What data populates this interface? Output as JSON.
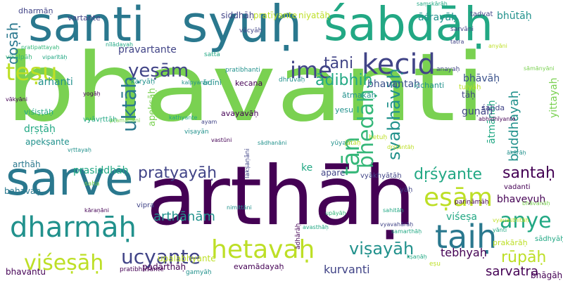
{
  "palette": [
    "#440154",
    "#414487",
    "#2a788e",
    "#22a884",
    "#7ad151",
    "#fde725",
    "#bddf26",
    "#35b779",
    "#3b528b",
    "#21918c"
  ],
  "words": [
    {
      "text": "bhavanti",
      "color": "#7ad151"
    },
    {
      "text": "arthāḥ",
      "color": "#440154"
    },
    {
      "text": "santi",
      "color": "#2a788e"
    },
    {
      "text": "syuḥ",
      "color": "#2a788e"
    },
    {
      "text": "śabdāḥ",
      "color": "#22a884"
    },
    {
      "text": "sarve",
      "color": "#2a788e"
    },
    {
      "text": "hetavaḥ",
      "color": "#bddf26"
    },
    {
      "text": "taiḥ",
      "color": "#2a788e"
    },
    {
      "text": "kecid",
      "color": "#414487"
    },
    {
      "text": "dharmāḥ",
      "color": "#21918c"
    },
    {
      "text": "eṣām",
      "color": "#bddf26"
    },
    {
      "text": "ime",
      "color": "#414487"
    },
    {
      "text": "teṣu",
      "color": "#bddf26"
    },
    {
      "text": "viśeṣāḥ",
      "color": "#bddf26"
    },
    {
      "text": "ucyante",
      "color": "#414487"
    },
    {
      "text": "anye",
      "color": "#22a884"
    },
    {
      "text": "viṣayāḥ",
      "color": "#21918c"
    },
    {
      "text": "yeṣām",
      "color": "#414487"
    },
    {
      "text": "santaḥ",
      "color": "#440154"
    },
    {
      "text": "pratyayāḥ",
      "color": "#414487"
    },
    {
      "text": "rūpāḥ",
      "color": "#bddf26"
    },
    {
      "text": "uktāḥ",
      "color": "#2a788e"
    },
    {
      "text": "bhedāḥ",
      "color": "#35b779"
    },
    {
      "text": "tān",
      "color": "#35b779"
    },
    {
      "text": "tāni",
      "color": "#414487"
    },
    {
      "text": "dṛśyante",
      "color": "#22a884"
    },
    {
      "text": "kurvanti",
      "color": "#414487"
    },
    {
      "text": "sarvatra",
      "color": "#440154"
    },
    {
      "text": "bhāgāḥ",
      "color": "#440154"
    },
    {
      "text": "tebhyaḥ",
      "color": "#440154"
    },
    {
      "text": "doṣāḥ",
      "color": "#2a788e"
    },
    {
      "text": "ādibhiḥ",
      "color": "#22a884"
    },
    {
      "text": "svabhāvāḥ",
      "color": "#21918c"
    },
    {
      "text": "buddhayaḥ",
      "color": "#21918c"
    },
    {
      "text": "arthānām",
      "color": "#21918c"
    },
    {
      "text": "bhāvāḥ",
      "color": "#3b528b"
    },
    {
      "text": "ātmānaḥ",
      "color": "#22a884"
    },
    {
      "text": "yittayaḥ",
      "color": "#7ad151"
    },
    {
      "text": "āśrayāḥ",
      "color": "#21918c"
    },
    {
      "text": "bhūtāḥ",
      "color": "#21918c"
    },
    {
      "text": "arthāḥ",
      "color": "#2a788e"
    },
    {
      "text": "arhanti",
      "color": "#21918c"
    },
    {
      "text": "apekṣante",
      "color": "#21918c"
    },
    {
      "text": "guṇāḥ",
      "color": "#414487"
    },
    {
      "text": "prasiddhāḥ",
      "color": "#22a884"
    },
    {
      "text": "pravartante",
      "color": "#414487"
    },
    {
      "text": "bhaveyuḥ",
      "color": "#440154"
    },
    {
      "text": "viśeṣa",
      "color": "#22a884"
    },
    {
      "text": "bahavaḥ",
      "color": "#2a788e"
    },
    {
      "text": "dṛṣṭāḥ",
      "color": "#22a884"
    },
    {
      "text": "apekṣāḥ",
      "color": "#7ad151"
    },
    {
      "text": "bhavantaḥ",
      "color": "#3b528b"
    },
    {
      "text": "bhavantu",
      "color": "#440154"
    },
    {
      "text": "siddhāḥ",
      "color": "#414487"
    },
    {
      "text": "pratīyante",
      "color": "#bddf26"
    },
    {
      "text": "niyatāḥ",
      "color": "#bddf26"
    },
    {
      "text": "vartante",
      "color": "#414487"
    },
    {
      "text": "dharmāṇ",
      "color": "#414487"
    },
    {
      "text": "upalabhyante",
      "color": "#bddf26"
    },
    {
      "text": "padārthāḥ",
      "color": "#440154"
    },
    {
      "text": "ātmakāḥ",
      "color": "#21918c"
    },
    {
      "text": "kecana",
      "color": "#440154"
    },
    {
      "text": "ādīni",
      "color": "#21918c"
    },
    {
      "text": "avayavāḥ",
      "color": "#440154"
    },
    {
      "text": "viśiṣṭāḥ",
      "color": "#22a884"
    },
    {
      "text": "vyāvṛttāḥ",
      "color": "#22a884"
    },
    {
      "text": "yāḥ",
      "color": "#414487"
    },
    {
      "text": "vadanti",
      "color": "#440154"
    },
    {
      "text": "tāḥ",
      "color": "#414487"
    },
    {
      "text": "icchanti",
      "color": "#21918c"
    },
    {
      "text": "tulyāḥ",
      "color": "#bddf26"
    },
    {
      "text": "yesu",
      "color": "#21918c"
    },
    {
      "text": "ke",
      "color": "#22a884"
    },
    {
      "text": "apare",
      "color": "#414487"
    },
    {
      "text": "vyākhyātāḥ",
      "color": "#414487"
    },
    {
      "text": "pariṇāmāḥ",
      "color": "#440154"
    },
    {
      "text": "prakārāḥ",
      "color": "#bddf26"
    },
    {
      "text": "sādhyāḥ",
      "color": "#22a884"
    },
    {
      "text": "anayaḥ",
      "color": "#414487"
    },
    {
      "text": "evamādayaḥ",
      "color": "#440154"
    },
    {
      "text": "gamyāḥ",
      "color": "#21918c"
    },
    {
      "text": "pratibhāsante",
      "color": "#440154"
    },
    {
      "text": "vipra",
      "color": "#414487"
    },
    {
      "text": "pratibhanti",
      "color": "#21918c"
    },
    {
      "text": "yūyam",
      "color": "#21918c"
    },
    {
      "text": "ādhārāḥ",
      "color": "#440154"
    },
    {
      "text": "vikalpāḥ",
      "color": "#35b779"
    },
    {
      "text": "dhruvāḥ",
      "color": "#21918c"
    },
    {
      "text": "saha",
      "color": "#7ad151"
    },
    {
      "text": "śabda",
      "color": "#414487"
    },
    {
      "text": "hetuḥ",
      "color": "#bddf26"
    },
    {
      "text": "jātāḥ",
      "color": "#bddf26"
    },
    {
      "text": "karyāḥ",
      "color": "#21918c"
    },
    {
      "text": "sarvāṇi",
      "color": "#414487"
    },
    {
      "text": "vastūni",
      "color": "#440154"
    },
    {
      "text": "sattā",
      "color": "#22a884"
    },
    {
      "text": "nīlādayaḥ",
      "color": "#22a884"
    },
    {
      "text": "ākārāḥ",
      "color": "#21918c"
    },
    {
      "text": "kāraṇāni",
      "color": "#440154"
    },
    {
      "text": "lakṣaṇāni",
      "color": "#414487"
    },
    {
      "text": "vācyāḥ",
      "color": "#414487"
    },
    {
      "text": "avasthāḥ",
      "color": "#22a884"
    },
    {
      "text": "viṣayān",
      "color": "#21918c"
    },
    {
      "text": "anyāni",
      "color": "#bddf26"
    },
    {
      "text": "sahitāḥ",
      "color": "#22a884"
    },
    {
      "text": "pratipattayaḥ",
      "color": "#35b779"
    },
    {
      "text": "sāmānyāni",
      "color": "#7ad151"
    },
    {
      "text": "vyavasthitāḥ",
      "color": "#bddf26"
    },
    {
      "text": "tadvat",
      "color": "#414487"
    },
    {
      "text": "eṣu",
      "color": "#bddf26"
    },
    {
      "text": "yānti",
      "color": "#22a884"
    },
    {
      "text": "kṣaṇāḥ",
      "color": "#22a884"
    },
    {
      "text": "nimittāni",
      "color": "#21918c"
    },
    {
      "text": "dṛṣṭāntāḥ",
      "color": "#bddf26"
    },
    {
      "text": "abhidhīyante",
      "color": "#440154"
    },
    {
      "text": "bhāvanāḥ",
      "color": "#7ad151"
    },
    {
      "text": "upāyāḥ",
      "color": "#35b779"
    },
    {
      "text": "vyavahārāḥ",
      "color": "#414487"
    },
    {
      "text": "tatra",
      "color": "#414487"
    },
    {
      "text": "kathyante",
      "color": "#22a884"
    },
    {
      "text": "sādhanāni",
      "color": "#21918c"
    },
    {
      "text": "viparītāḥ",
      "color": "#22a884"
    },
    {
      "text": "yogāḥ",
      "color": "#440154"
    },
    {
      "text": "pramāṇāni",
      "color": "#7ad151"
    },
    {
      "text": "saṃskārāḥ",
      "color": "#22a884"
    },
    {
      "text": "vṛttayaḥ",
      "color": "#21918c"
    },
    {
      "text": "samarthāḥ",
      "color": "#22a884"
    },
    {
      "text": "ayam",
      "color": "#414487"
    },
    {
      "text": "vākyāni",
      "color": "#440154"
    },
    {
      "text": "kalpyante",
      "color": "#21918c"
    }
  ]
}
